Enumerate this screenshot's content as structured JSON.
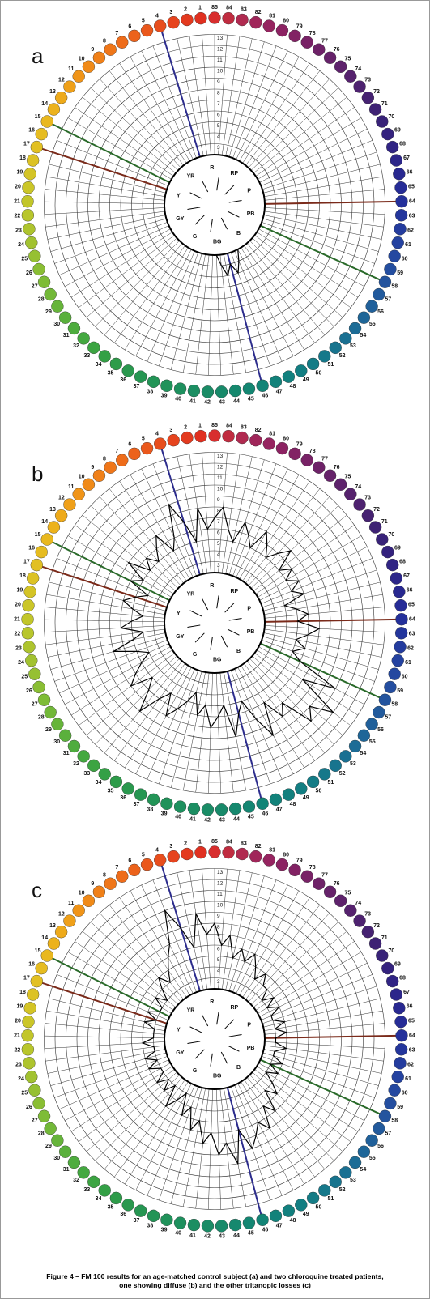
{
  "cap_colors": [
    "#e03020",
    "#e33a1f",
    "#e6441e",
    "#e84e1d",
    "#ea581c",
    "#ec621b",
    "#ee6c1a",
    "#ef7619",
    "#f08018",
    "#f08a18",
    "#f09418",
    "#efa019",
    "#eeaa1a",
    "#ecb21c",
    "#e9b81e",
    "#e6bc20",
    "#e2c022",
    "#dcc224",
    "#d4c426",
    "#cbc628",
    "#c2c62a",
    "#b8c62c",
    "#aec42e",
    "#a2c230",
    "#96c032",
    "#8abe34",
    "#7ebc36",
    "#72b838",
    "#66b43a",
    "#5ab03c",
    "#4eac3e",
    "#44a840",
    "#3ca442",
    "#34a046",
    "#2e9c4a",
    "#2a984e",
    "#269652",
    "#229456",
    "#20925a",
    "#1e905e",
    "#1c8e62",
    "#1a8c66",
    "#188a6a",
    "#16886e",
    "#148672",
    "#128476",
    "#12827a",
    "#12807e",
    "#127e82",
    "#147c86",
    "#16788a",
    "#18748e",
    "#1a7092",
    "#1c6c96",
    "#1e6698",
    "#20609a",
    "#225a9c",
    "#24549e",
    "#244ea0",
    "#2448a0",
    "#2442a0",
    "#243c9e",
    "#24369c",
    "#24309a",
    "#262c96",
    "#282890",
    "#2c268a",
    "#302484",
    "#34227e",
    "#382278",
    "#3e2274",
    "#462272",
    "#4e2270",
    "#56226e",
    "#5e226c",
    "#66226a",
    "#6e2268",
    "#782266",
    "#822264",
    "#8c2262",
    "#962460",
    "#a0265a",
    "#b02a50",
    "#c02c40",
    "#d82e2e"
  ],
  "axis_lines": [
    {
      "caps": [
        4,
        46
      ],
      "color": "#2c2c8c"
    },
    {
      "caps": [
        15,
        58
      ],
      "color": "#2a6a2a"
    },
    {
      "caps": [
        17,
        64
      ],
      "color": "#7a2a1a"
    }
  ],
  "hue_labels": [
    "R",
    "RP",
    "P",
    "PB",
    "B",
    "BG",
    "G",
    "GY",
    "Y",
    "YR"
  ],
  "chart_data": [
    {
      "type": "polar",
      "label": "a",
      "categories": [
        1,
        2,
        3,
        4,
        5,
        6,
        7,
        8,
        9,
        10,
        11,
        12,
        13,
        14,
        15,
        16,
        17,
        18,
        19,
        20,
        21,
        22,
        23,
        24,
        25,
        26,
        27,
        28,
        29,
        30,
        31,
        32,
        33,
        34,
        35,
        36,
        37,
        38,
        39,
        40,
        41,
        42,
        43,
        44,
        45,
        46,
        47,
        48,
        49,
        50,
        51,
        52,
        53,
        54,
        55,
        56,
        57,
        58,
        59,
        60,
        61,
        62,
        63,
        64,
        65,
        66,
        67,
        68,
        69,
        70,
        71,
        72,
        73,
        74,
        75,
        76,
        77,
        78,
        79,
        80,
        81,
        82,
        83,
        84,
        85
      ],
      "values": [
        2,
        2,
        2,
        2,
        2,
        2,
        2,
        2,
        2,
        2,
        2,
        2,
        2,
        2,
        2,
        2,
        2,
        2,
        2,
        2,
        2,
        2,
        2,
        2,
        2,
        2,
        2,
        2,
        2,
        2,
        2,
        2,
        2,
        2,
        2,
        2,
        2,
        2,
        2,
        2,
        2,
        2,
        2,
        3,
        4,
        3,
        4,
        3,
        2,
        2,
        2,
        2,
        2,
        2,
        2,
        2,
        2,
        2,
        2,
        2,
        2,
        2,
        2,
        2,
        2,
        2,
        2,
        2,
        2,
        2,
        2,
        2,
        2,
        2,
        2,
        2,
        2,
        2,
        2,
        2,
        2,
        2,
        2,
        2,
        2
      ],
      "rlim": [
        2,
        14
      ],
      "rticks": [
        2,
        3,
        4,
        5,
        6,
        7,
        8,
        9,
        10,
        11,
        12,
        13
      ]
    },
    {
      "type": "polar",
      "label": "b",
      "categories": [
        1,
        2,
        3,
        4,
        5,
        6,
        7,
        8,
        9,
        10,
        11,
        12,
        13,
        14,
        15,
        16,
        17,
        18,
        19,
        20,
        21,
        22,
        23,
        24,
        25,
        26,
        27,
        28,
        29,
        30,
        31,
        32,
        33,
        34,
        35,
        36,
        37,
        38,
        39,
        40,
        41,
        42,
        43,
        44,
        45,
        46,
        47,
        48,
        49,
        50,
        51,
        52,
        53,
        54,
        55,
        56,
        57,
        58,
        59,
        60,
        61,
        62,
        63,
        64,
        65,
        66,
        67,
        68,
        69,
        70,
        71,
        72,
        73,
        74,
        75,
        76,
        77,
        78,
        79,
        80,
        81,
        82,
        83,
        84,
        85
      ],
      "values": [
        6,
        8,
        5,
        7,
        9,
        6,
        5,
        7,
        6,
        5,
        6,
        5,
        7,
        5,
        6,
        4,
        5,
        6,
        5,
        4,
        5,
        6,
        4,
        5,
        7,
        5,
        4,
        5,
        6,
        7,
        5,
        6,
        8,
        6,
        5,
        7,
        6,
        5,
        4,
        6,
        5,
        7,
        6,
        5,
        8,
        6,
        5,
        7,
        9,
        6,
        8,
        7,
        10,
        9,
        11,
        7,
        10,
        6,
        5,
        6,
        5,
        6,
        7,
        5,
        6,
        5,
        4,
        6,
        5,
        6,
        5,
        6,
        5,
        7,
        6,
        5,
        6,
        7,
        5,
        6,
        7,
        5,
        6,
        8,
        7
      ],
      "rlim": [
        2,
        14
      ],
      "rticks": [
        2,
        3,
        4,
        5,
        6,
        7,
        8,
        9,
        10,
        11,
        12,
        13
      ]
    },
    {
      "type": "polar",
      "label": "c",
      "categories": [
        1,
        2,
        3,
        4,
        5,
        6,
        7,
        8,
        9,
        10,
        11,
        12,
        13,
        14,
        15,
        16,
        17,
        18,
        19,
        20,
        21,
        22,
        23,
        24,
        25,
        26,
        27,
        28,
        29,
        30,
        31,
        32,
        33,
        34,
        35,
        36,
        37,
        38,
        39,
        40,
        41,
        42,
        43,
        44,
        45,
        46,
        47,
        48,
        49,
        50,
        51,
        52,
        53,
        54,
        55,
        56,
        57,
        58,
        59,
        60,
        61,
        62,
        63,
        64,
        65,
        66,
        67,
        68,
        69,
        70,
        71,
        72,
        73,
        74,
        75,
        76,
        77,
        78,
        79,
        80,
        81,
        82,
        83,
        84,
        85
      ],
      "values": [
        7,
        9,
        6,
        8,
        10,
        7,
        6,
        5,
        4,
        5,
        4,
        3,
        4,
        3,
        3,
        4,
        3,
        4,
        3,
        3,
        3,
        4,
        3,
        3,
        4,
        3,
        4,
        3,
        3,
        4,
        3,
        4,
        3,
        5,
        4,
        3,
        5,
        4,
        6,
        5,
        7,
        6,
        8,
        7,
        9,
        6,
        8,
        7,
        6,
        7,
        5,
        6,
        4,
        5,
        4,
        3,
        4,
        3,
        4,
        3,
        3,
        4,
        3,
        3,
        4,
        3,
        4,
        3,
        3,
        4,
        3,
        4,
        3,
        4,
        4,
        5,
        4,
        5,
        6,
        5,
        6,
        5,
        7,
        6,
        8
      ],
      "rlim": [
        2,
        14
      ],
      "rticks": [
        2,
        3,
        4,
        5,
        6,
        7,
        8,
        9,
        10,
        11,
        12,
        13
      ]
    }
  ],
  "caption": [
    "Figure 4 – FM 100 results for an age-matched control subject (a) and two chloroquine treated patients,",
    "one showing diffuse (b) and the other tritanopic losses (c)"
  ]
}
